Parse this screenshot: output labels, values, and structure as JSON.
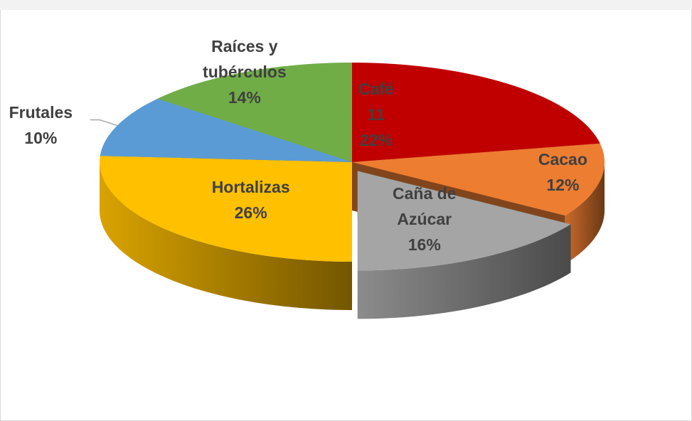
{
  "chart_data": {
    "type": "pie",
    "categories": [
      "Café",
      "Cacao",
      "Caña de Azúcar",
      "Hortalizas",
      "Frutales",
      "Raíces y tubérculos"
    ],
    "values": [
      22,
      12,
      16,
      26,
      10,
      14
    ],
    "value_labels": [
      "22%",
      "12%",
      "16%",
      "26%",
      "10%",
      "14%"
    ],
    "colors": [
      "#c00000",
      "#ed7d31",
      "#a5a5a5",
      "#ffc000",
      "#5b9bd5",
      "#70ad47"
    ],
    "annotations": [
      "11"
    ]
  }
}
